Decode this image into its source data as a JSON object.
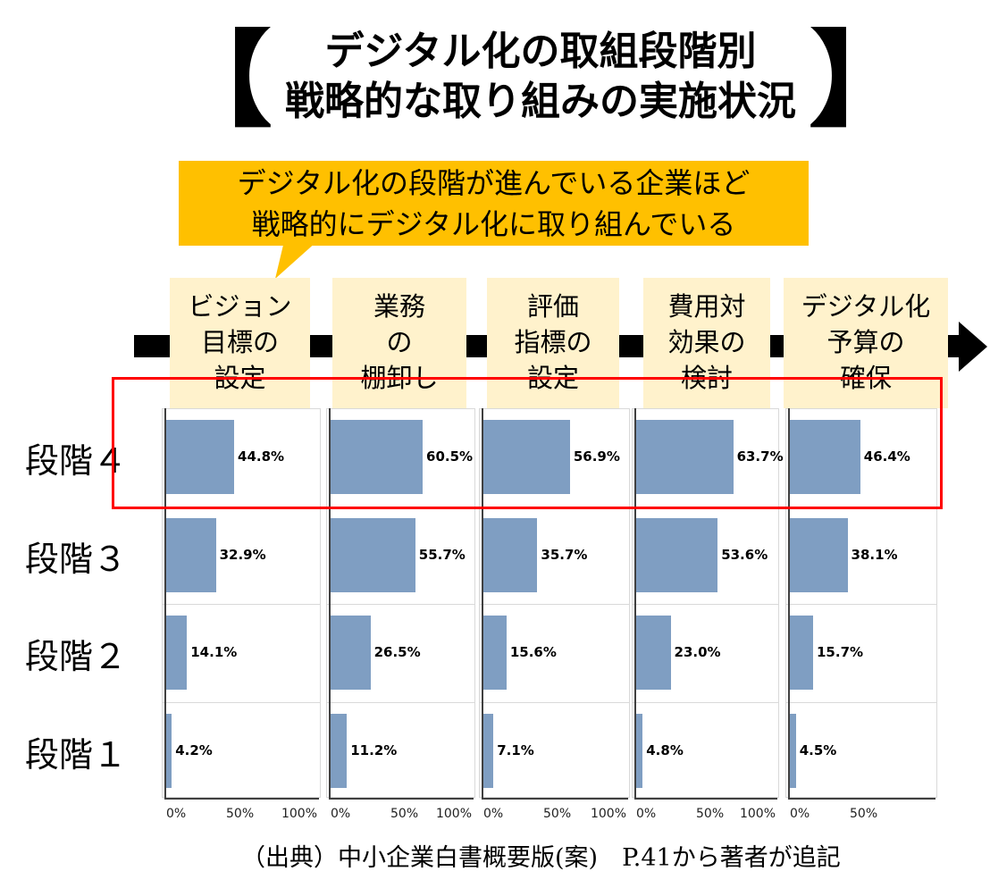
{
  "title": {
    "line1": "デジタル化の取組段階別",
    "line2": "戦略的な取り組みの実施状況",
    "bracket_left": "【",
    "bracket_right": "】"
  },
  "callout": {
    "line1": "デジタル化の段階が進んでいる企業ほど",
    "line2": "戦略的にデジタル化に取り組んでいる",
    "color": "#FFC000"
  },
  "source": "（出典）中小企業白書概要版(案)　P.41から著者が追記",
  "chart_data": {
    "type": "bar",
    "orientation": "horizontal",
    "categories": [
      "段階４",
      "段階３",
      "段階２",
      "段階１"
    ],
    "series": [
      {
        "name": "ビジョン\n目標の\n設定",
        "values": [
          44.8,
          32.9,
          14.1,
          4.2
        ]
      },
      {
        "name": "業務\nの\n棚卸し",
        "values": [
          60.5,
          55.7,
          26.5,
          11.2
        ]
      },
      {
        "name": "評価\n指標の\n設定",
        "values": [
          56.9,
          35.7,
          15.6,
          7.1
        ]
      },
      {
        "name": "費用対\n効果の\n検討",
        "values": [
          63.7,
          53.6,
          23.0,
          4.8
        ]
      },
      {
        "name": "デジタル化\n予算の\n確保",
        "values": [
          46.4,
          38.1,
          15.7,
          4.5
        ]
      }
    ],
    "value_labels": [
      [
        "44.8%",
        "32.9%",
        "14.1%",
        "4.2%"
      ],
      [
        "60.5%",
        "55.7%",
        "26.5%",
        "11.2%"
      ],
      [
        "56.9%",
        "35.7%",
        "15.6%",
        "7.1%"
      ],
      [
        "63.7%",
        "53.6%",
        "23.0%",
        "4.8%"
      ],
      [
        "46.4%",
        "38.1%",
        "15.7%",
        "4.5%"
      ]
    ],
    "xlim": [
      0,
      100
    ],
    "tick_labels": [
      [
        "0%",
        "50%",
        "100%"
      ],
      [
        "0%",
        "50%",
        "100%"
      ],
      [
        "0%",
        "50%",
        "100%"
      ],
      [
        "0%",
        "50%",
        "100%"
      ],
      [
        "0%",
        "50%"
      ]
    ],
    "highlighted_category": "段階４",
    "bar_color": "#7F9EC2",
    "highlight_color": "#FF0000",
    "header_color": "#FFF2CC"
  }
}
